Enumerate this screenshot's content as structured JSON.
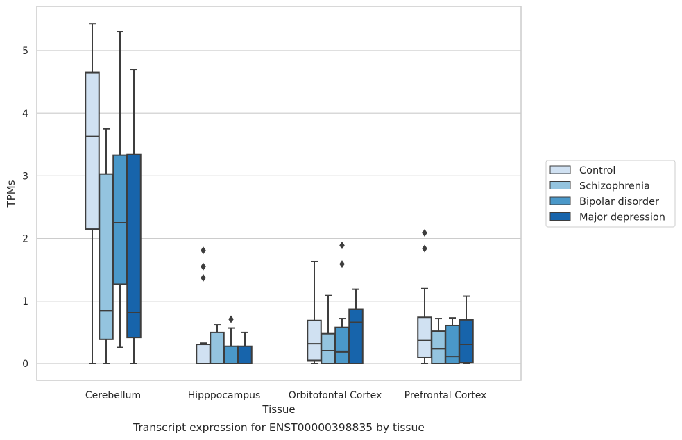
{
  "chart_data": {
    "type": "box",
    "title": "",
    "caption": "Transcript expression for ENST00000398835 by tissue",
    "xlabel": "Tissue",
    "ylabel": "TPMs",
    "ylim": [
      -0.27,
      5.72
    ],
    "yticks": [
      "0",
      "1",
      "2",
      "3",
      "4",
      "5"
    ],
    "categories": [
      "Cerebellum",
      "Hipppocampus",
      "Orbitofontal Cortex",
      "Prefrontal Cortex"
    ],
    "grid": "horizontal",
    "legend_position": "right",
    "series": [
      {
        "name": "Control",
        "color": "#d0e1f2",
        "boxes": [
          {
            "min": 0.0,
            "q1": 2.15,
            "median": 3.63,
            "q3": 4.65,
            "max": 5.43,
            "outliers": []
          },
          {
            "min": 0.0,
            "q1": 0.0,
            "median": 0.0,
            "q3": 0.31,
            "max": 0.33,
            "outliers": [
              1.37,
              1.55,
              1.81
            ]
          },
          {
            "min": 0.0,
            "q1": 0.05,
            "median": 0.32,
            "q3": 0.69,
            "max": 1.63,
            "outliers": []
          },
          {
            "min": 0.0,
            "q1": 0.1,
            "median": 0.37,
            "q3": 0.74,
            "max": 1.2,
            "outliers": [
              1.84,
              2.09
            ]
          }
        ]
      },
      {
        "name": "Schizophrenia",
        "color": "#94c4df",
        "boxes": [
          {
            "min": 0.0,
            "q1": 0.39,
            "median": 0.85,
            "q3": 3.03,
            "max": 3.75,
            "outliers": []
          },
          {
            "min": 0.0,
            "q1": 0.0,
            "median": 0.0,
            "q3": 0.5,
            "max": 0.62,
            "outliers": []
          },
          {
            "min": 0.0,
            "q1": 0.0,
            "median": 0.21,
            "q3": 0.48,
            "max": 1.09,
            "outliers": []
          },
          {
            "min": 0.0,
            "q1": 0.0,
            "median": 0.24,
            "q3": 0.52,
            "max": 0.72,
            "outliers": []
          }
        ]
      },
      {
        "name": "Bipolar disorder",
        "color": "#4a98c9",
        "boxes": [
          {
            "min": 0.26,
            "q1": 1.27,
            "median": 2.25,
            "q3": 3.33,
            "max": 5.31,
            "outliers": []
          },
          {
            "min": 0.0,
            "q1": 0.0,
            "median": 0.0,
            "q3": 0.28,
            "max": 0.57,
            "outliers": [
              0.71
            ]
          },
          {
            "min": 0.0,
            "q1": 0.0,
            "median": 0.19,
            "q3": 0.58,
            "max": 0.72,
            "outliers": [
              1.59,
              1.89
            ]
          },
          {
            "min": 0.0,
            "q1": 0.0,
            "median": 0.11,
            "q3": 0.61,
            "max": 0.73,
            "outliers": []
          }
        ]
      },
      {
        "name": "Major depression",
        "color": "#1764ab",
        "boxes": [
          {
            "min": 0.0,
            "q1": 0.42,
            "median": 0.82,
            "q3": 3.34,
            "max": 4.7,
            "outliers": []
          },
          {
            "min": 0.0,
            "q1": 0.0,
            "median": 0.0,
            "q3": 0.28,
            "max": 0.5,
            "outliers": []
          },
          {
            "min": 0.0,
            "q1": 0.0,
            "median": 0.66,
            "q3": 0.87,
            "max": 1.19,
            "outliers": []
          },
          {
            "min": 0.0,
            "q1": 0.02,
            "median": 0.31,
            "q3": 0.7,
            "max": 1.08,
            "outliers": []
          }
        ]
      }
    ]
  }
}
